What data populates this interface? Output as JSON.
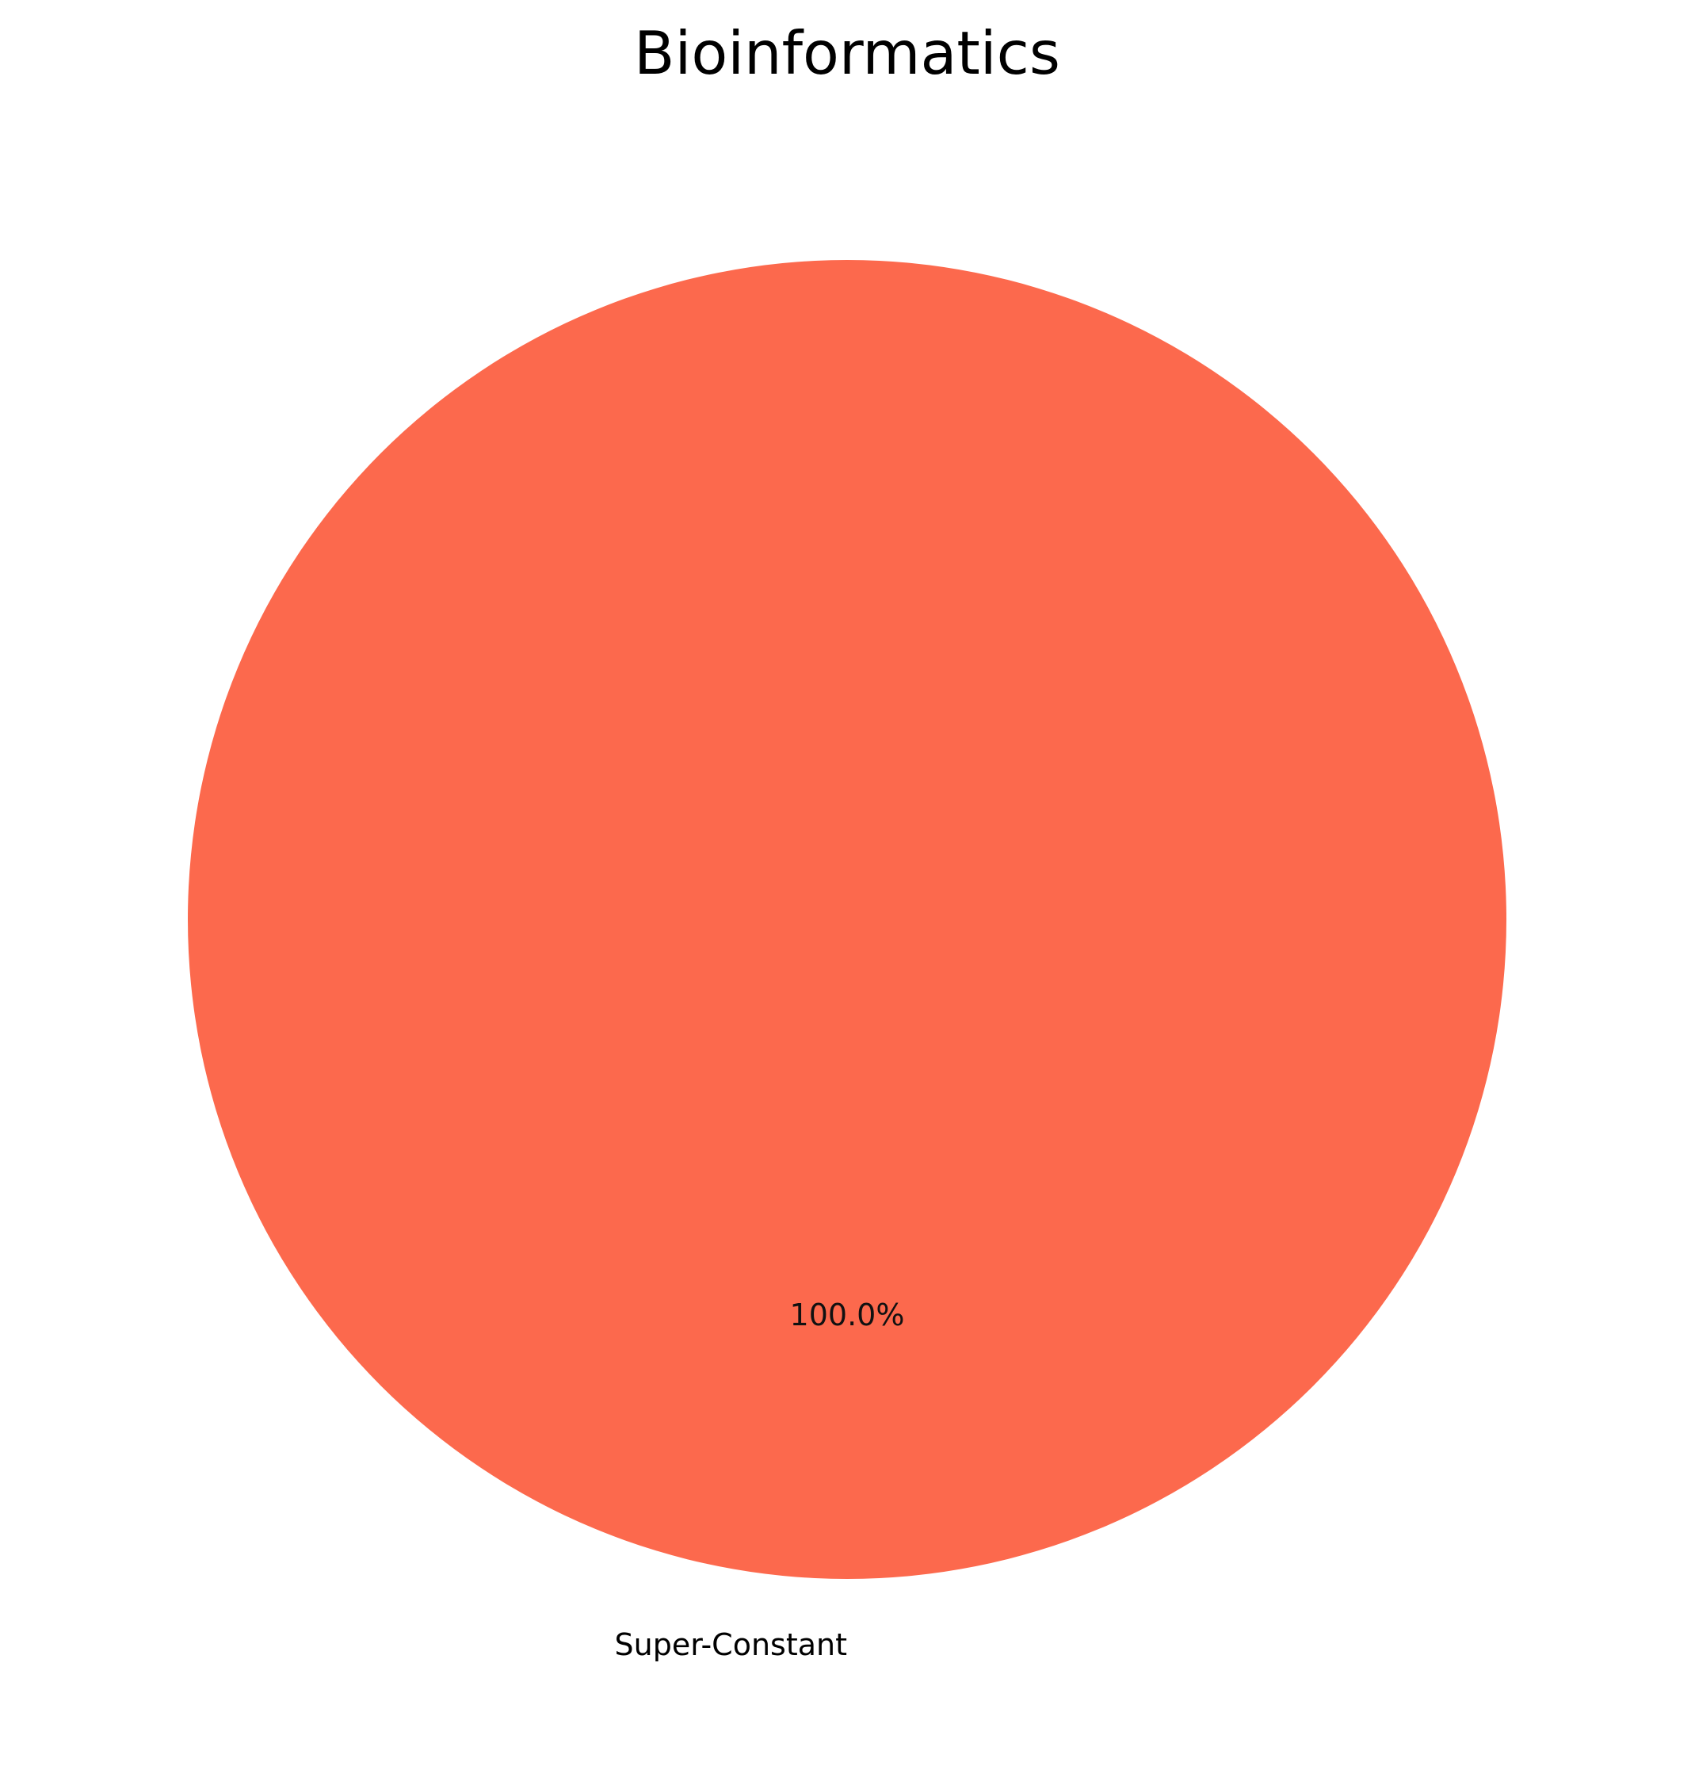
{
  "chart_data": {
    "type": "pie",
    "title": "Bioinformatics",
    "slices": [
      {
        "label": "Super-Constant",
        "value": 100.0,
        "percent_label": "100.0%",
        "color": "#fc694d"
      }
    ],
    "start_angle_deg": 90,
    "legend": "none"
  }
}
